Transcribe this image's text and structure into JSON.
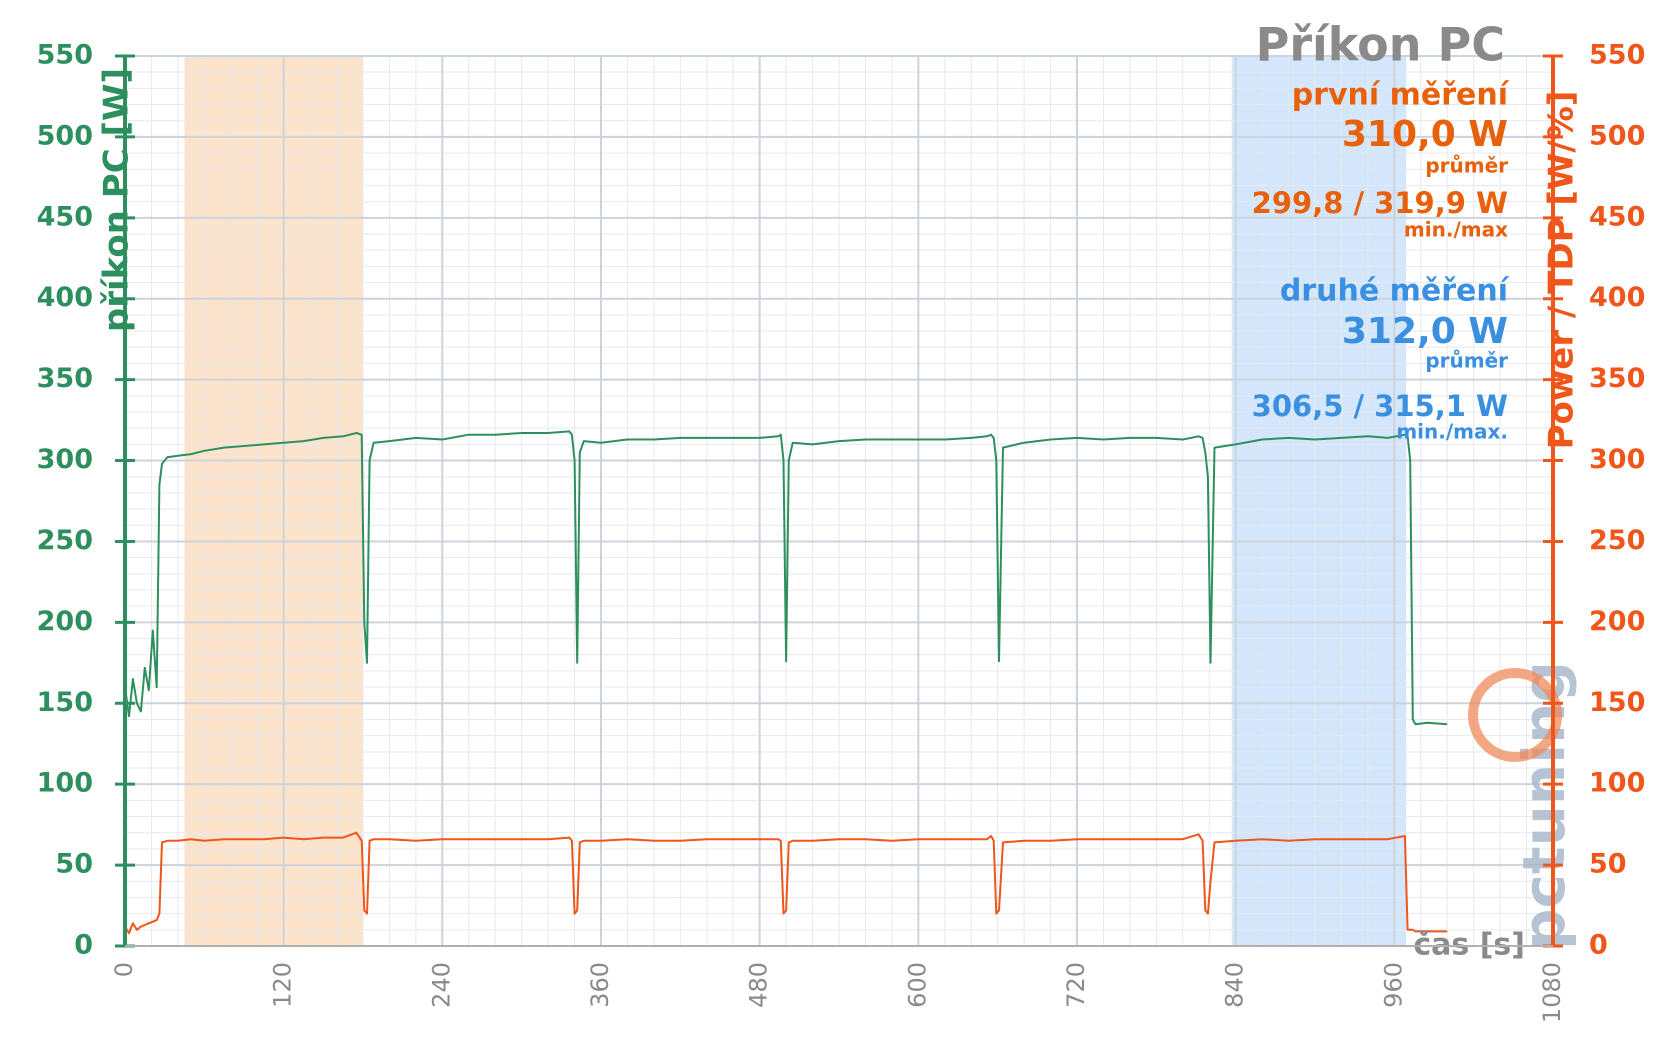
{
  "chart_data": {
    "type": "line",
    "title": "Příkon PC",
    "y_label": "příkon PC [W]",
    "y2_label": "Power / TDP [W/%]",
    "x_label": "čas [s]",
    "watermark": "pctuning",
    "first_measurement": {
      "label": "první měření",
      "mean": "310,0 W",
      "mean_label": "průměr",
      "range": "299,8 / 319,9 W",
      "range_label": "min./max",
      "color": "#e8600a"
    },
    "second_measurement": {
      "label": "druhé měření",
      "mean": "312,0 W",
      "mean_label": "průměr",
      "range": "306,5 / 315,1 W",
      "range_label": "min./max.",
      "color": "#3a8fe0"
    },
    "highlight_ranges": [
      {
        "x": [
          45,
          180
        ],
        "color": "#fbe3cc"
      },
      {
        "x": [
          837,
          969
        ],
        "color": "#d3e6fb"
      }
    ],
    "x": [
      0,
      3,
      6,
      9,
      12,
      15,
      18,
      21,
      24,
      26,
      28,
      32,
      40,
      50,
      60,
      75,
      90,
      105,
      120,
      135,
      150,
      165,
      175,
      179,
      181,
      183,
      185,
      188,
      200,
      220,
      240,
      260,
      280,
      300,
      320,
      336,
      338,
      340,
      342,
      344,
      347,
      360,
      380,
      400,
      420,
      440,
      460,
      480,
      494,
      496,
      498,
      500,
      502,
      505,
      520,
      540,
      560,
      580,
      600,
      620,
      640,
      652,
      655,
      657,
      659,
      661,
      664,
      680,
      700,
      720,
      740,
      760,
      780,
      800,
      812,
      815,
      817,
      819,
      821,
      824,
      840,
      860,
      880,
      900,
      920,
      940,
      955,
      968,
      970,
      972,
      974,
      976,
      985,
      1000
    ],
    "series": [
      {
        "name": "příkon PC",
        "color": "#2e8f5e",
        "axis": "y",
        "values": [
          160,
          142,
          165,
          150,
          145,
          172,
          158,
          195,
          160,
          285,
          298,
          302,
          303,
          304,
          306,
          308,
          309,
          310,
          311,
          312,
          314,
          315,
          317,
          316,
          200,
          175,
          300,
          311,
          312,
          314,
          313,
          316,
          316,
          317,
          317,
          318,
          316,
          300,
          175,
          305,
          312,
          311,
          313,
          313,
          314,
          314,
          314,
          314,
          315,
          316,
          300,
          176,
          300,
          311,
          310,
          312,
          313,
          313,
          313,
          313,
          314,
          315,
          316,
          314,
          300,
          176,
          308,
          311,
          313,
          314,
          313,
          314,
          314,
          313,
          315,
          314,
          305,
          290,
          175,
          308,
          310,
          313,
          314,
          313,
          314,
          315,
          314,
          316,
          315,
          300,
          140,
          137,
          138,
          137
        ]
      },
      {
        "name": "Power / TDP",
        "color": "#f0551a",
        "axis": "y2",
        "values": [
          12,
          8,
          14,
          10,
          12,
          13,
          14,
          15,
          16,
          20,
          64,
          65,
          65,
          66,
          65,
          66,
          66,
          66,
          67,
          66,
          67,
          67,
          70,
          65,
          22,
          20,
          65,
          66,
          66,
          65,
          66,
          66,
          66,
          66,
          66,
          67,
          65,
          20,
          22,
          64,
          65,
          65,
          66,
          65,
          65,
          66,
          66,
          66,
          66,
          65,
          20,
          22,
          64,
          65,
          65,
          66,
          66,
          65,
          66,
          66,
          66,
          66,
          68,
          65,
          20,
          22,
          64,
          65,
          65,
          66,
          66,
          66,
          66,
          66,
          69,
          65,
          22,
          20,
          40,
          64,
          65,
          66,
          65,
          66,
          66,
          66,
          66,
          68,
          10,
          10,
          10,
          9,
          9,
          9
        ]
      }
    ],
    "xlim": [
      0,
      1080
    ],
    "xticks": [
      0,
      120,
      240,
      360,
      480,
      600,
      720,
      840,
      960,
      1080
    ],
    "ylim": [
      0,
      550
    ],
    "yticks": [
      0,
      50,
      100,
      150,
      200,
      250,
      300,
      350,
      400,
      450,
      500,
      550
    ],
    "y2lim": [
      0,
      550
    ],
    "y2ticks": [
      0,
      50,
      100,
      150,
      200,
      250,
      300,
      350,
      400,
      450,
      500,
      550
    ],
    "minor_grid_step": {
      "x": 20,
      "y": 10
    },
    "grid": true,
    "y_axis_color": "#2e8f5e",
    "y2_axis_color": "#f0551a"
  }
}
